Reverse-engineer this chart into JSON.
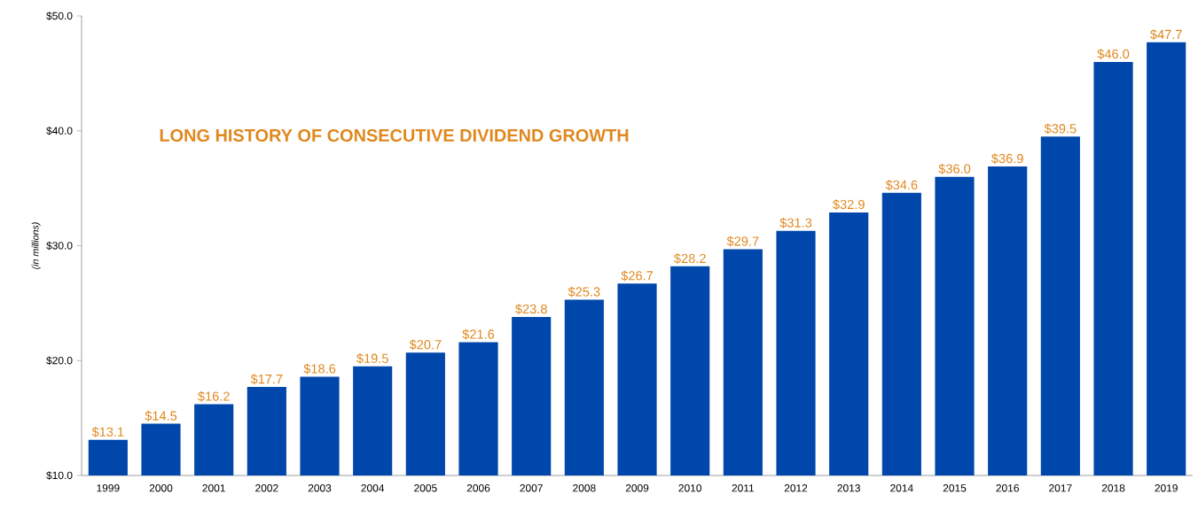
{
  "chart_data": {
    "type": "bar",
    "title": "LONG HISTORY OF CONSECUTIVE DIVIDEND GROWTH",
    "ylabel": "(in millions)",
    "categories": [
      "1999",
      "2000",
      "2001",
      "2002",
      "2003",
      "2004",
      "2005",
      "2006",
      "2007",
      "2008",
      "2009",
      "2010",
      "2011",
      "2012",
      "2013",
      "2014",
      "2015",
      "2016",
      "2017",
      "2018",
      "2019"
    ],
    "values": [
      13.1,
      14.5,
      16.2,
      17.7,
      18.6,
      19.5,
      20.7,
      21.6,
      23.8,
      25.3,
      26.7,
      28.2,
      29.7,
      31.3,
      32.9,
      34.6,
      36.0,
      36.9,
      39.5,
      46.0,
      47.7
    ],
    "value_labels": [
      "$13.1",
      "$14.5",
      "$16.2",
      "$17.7",
      "$18.6",
      "$19.5",
      "$20.7",
      "$21.6",
      "$23.8",
      "$25.3",
      "$26.7",
      "$28.2",
      "$29.7",
      "$31.3",
      "$32.9",
      "$34.6",
      "$36.0",
      "$36.9",
      "$39.5",
      "$46.0",
      "$47.7"
    ],
    "color": "#0047ab",
    "ylim": [
      10,
      50
    ],
    "yticks": [
      {
        "value": 10,
        "label": "$10.0"
      },
      {
        "value": 20,
        "label": "$20.0"
      },
      {
        "value": 30,
        "label": "$30.0"
      },
      {
        "value": 40,
        "label": "$40.0"
      },
      {
        "value": 50,
        "label": "$50.0"
      }
    ]
  }
}
